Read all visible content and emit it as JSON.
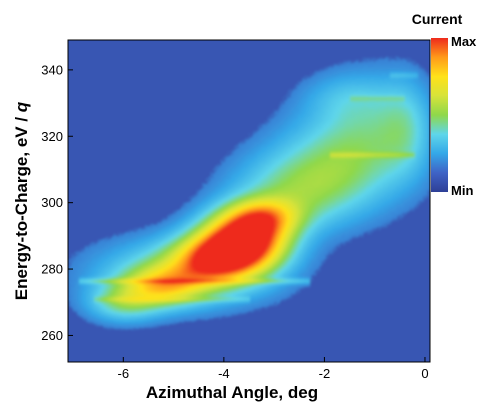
{
  "chart_data": {
    "type": "heatmap",
    "xlabel": "Azimuthal Angle, deg",
    "ylabel_main": "Energy-to-Charge, eV / ",
    "ylabel_italic": "q",
    "x_ticks": [
      -6,
      -4,
      -2,
      0
    ],
    "y_ticks": [
      260,
      280,
      300,
      320,
      340
    ],
    "xlim": [
      -7.1,
      0.1
    ],
    "ylim": [
      252,
      349
    ],
    "colorbar": {
      "title": "Current",
      "max_label": "Max",
      "min_label": "Min",
      "colors": [
        "#2e3f96",
        "#3f63c6",
        "#34a8e8",
        "#5fd6ea",
        "#8fd84a",
        "#d7e33a",
        "#ffe21a",
        "#ff9a1a",
        "#ee2a1c"
      ]
    },
    "background_color": "#3956b3",
    "intensity_blobs": [
      {
        "x": -3.6,
        "y": 289,
        "sx": 0.6,
        "sy": 6,
        "a": 1.0
      },
      {
        "x": -4.2,
        "y": 283,
        "sx": 0.6,
        "sy": 5,
        "a": 0.6
      },
      {
        "x": -5.2,
        "y": 275,
        "sx": 0.55,
        "sy": 4,
        "a": 0.45
      },
      {
        "x": -3.2,
        "y": 296,
        "sx": 0.5,
        "sy": 4,
        "a": 0.4
      },
      {
        "x": -4.8,
        "y": 279,
        "sx": 1.2,
        "sy": 7,
        "a": 0.35
      },
      {
        "x": -6.0,
        "y": 270,
        "sx": 0.5,
        "sy": 4,
        "a": 0.3
      },
      {
        "x": -2.6,
        "y": 303,
        "sx": 0.9,
        "sy": 8,
        "a": 0.3
      },
      {
        "x": -1.8,
        "y": 313,
        "sx": 0.9,
        "sy": 10,
        "a": 0.24
      },
      {
        "x": -1.0,
        "y": 322,
        "sx": 0.8,
        "sy": 12,
        "a": 0.2
      },
      {
        "x": -0.4,
        "y": 323,
        "sx": 0.35,
        "sy": 10,
        "a": 0.15
      },
      {
        "x": -1.6,
        "y": 332,
        "sx": 0.6,
        "sy": 5,
        "a": 0.1
      }
    ],
    "streaks": [
      {
        "y": 276.5,
        "x0": -6.9,
        "x1": -2.3,
        "a": 0.14
      },
      {
        "y": 271.0,
        "x0": -6.6,
        "x1": -3.5,
        "a": 0.1
      },
      {
        "y": 314.5,
        "x0": -1.9,
        "x1": -0.2,
        "a": 0.12
      },
      {
        "y": 331.5,
        "x0": -1.5,
        "x1": -0.4,
        "a": 0.08
      },
      {
        "y": 338.5,
        "x0": -0.7,
        "x1": -0.15,
        "a": 0.08
      }
    ]
  }
}
